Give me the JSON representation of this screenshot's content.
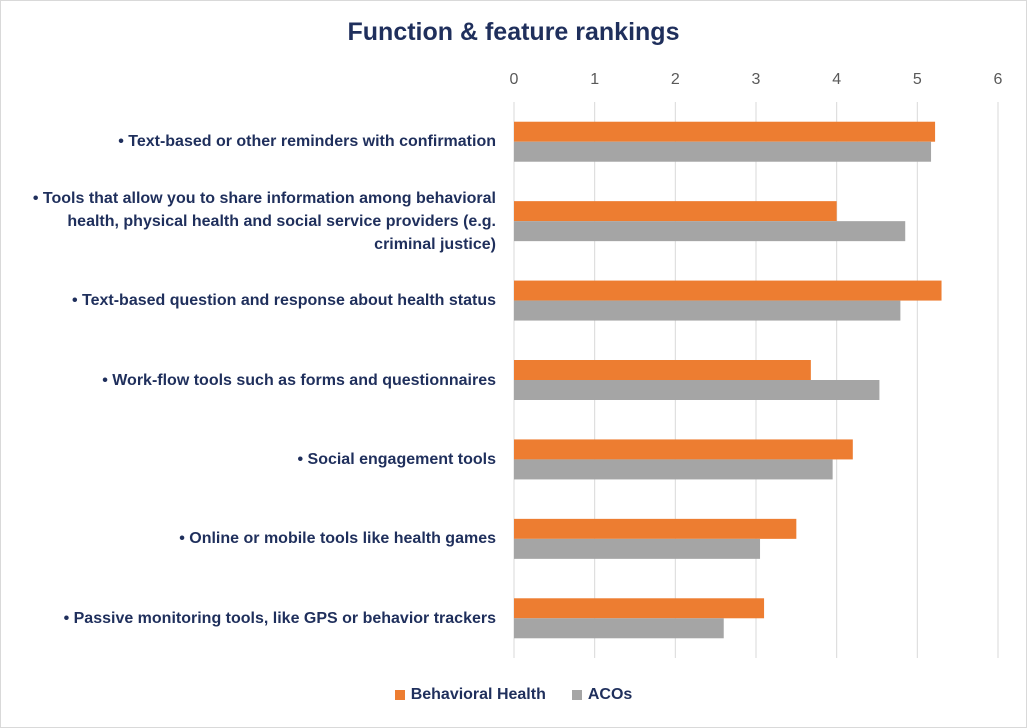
{
  "chart_data": {
    "type": "bar",
    "orientation": "horizontal",
    "title": "Function & feature rankings",
    "xlim": [
      0,
      6
    ],
    "xticks": [
      0,
      1,
      2,
      3,
      4,
      5,
      6
    ],
    "categories": [
      "• Text-based or other reminders with confirmation",
      "• Tools that allow you to share information among behavioral health, physical health and social service providers (e.g. criminal justice)",
      "• Text-based question and response about health status",
      "• Work-flow tools such as forms and questionnaires",
      "• Social engagement tools",
      "• Online or mobile tools like health games",
      "• Passive monitoring tools, like GPS or behavior trackers"
    ],
    "series": [
      {
        "name": "Behavioral Health",
        "color": "#ed7d31",
        "values": [
          5.22,
          4.0,
          5.3,
          3.68,
          4.2,
          3.5,
          3.1
        ]
      },
      {
        "name": "ACOs",
        "color": "#a5a5a5",
        "values": [
          5.17,
          4.85,
          4.79,
          4.53,
          3.95,
          3.05,
          2.6
        ]
      }
    ],
    "grid": "vertical",
    "legend_position": "bottom"
  }
}
